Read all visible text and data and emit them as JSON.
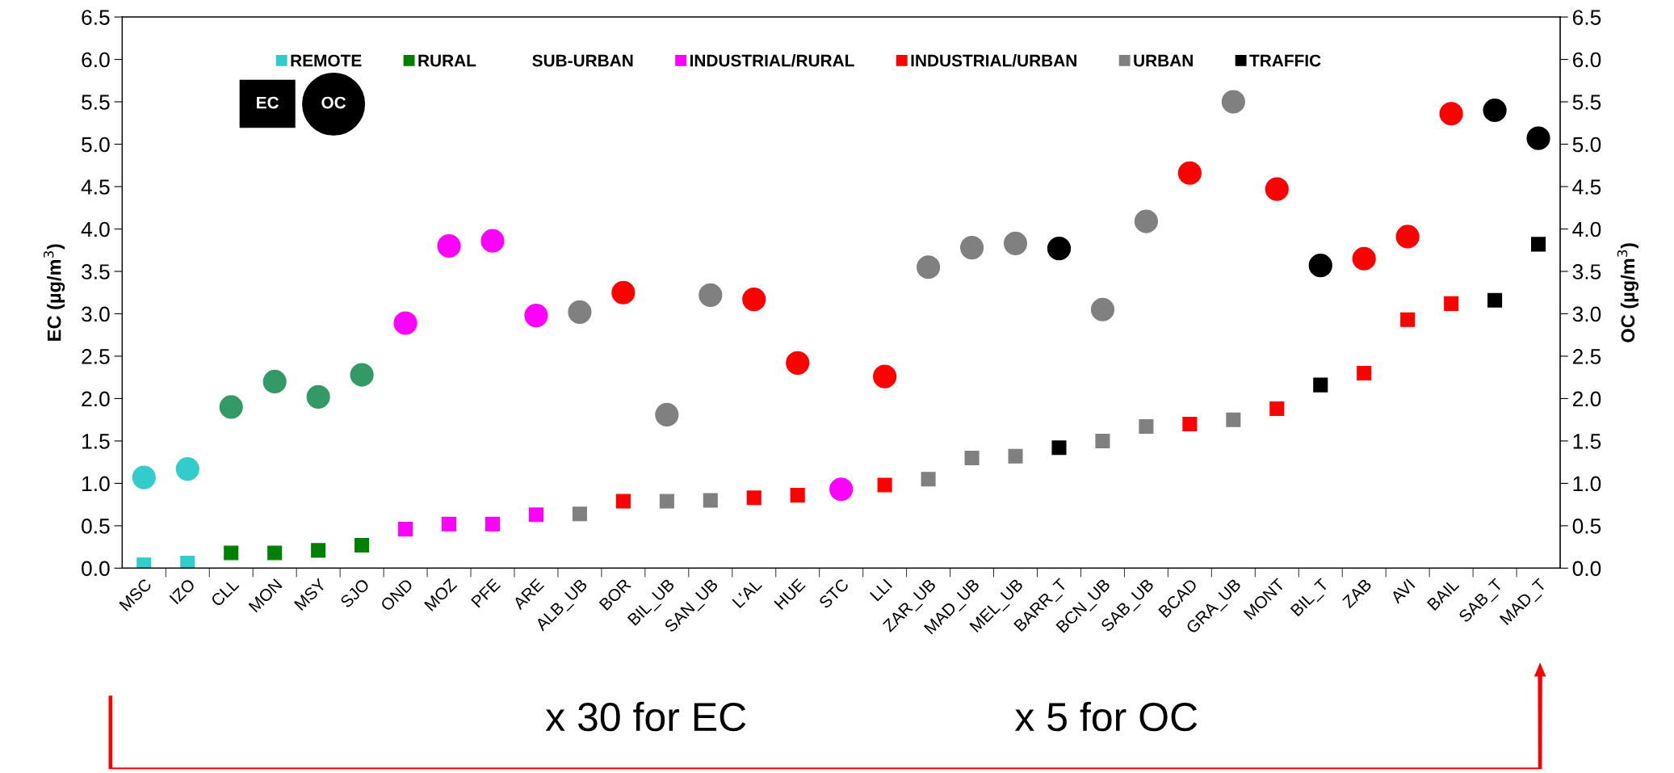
{
  "chart_data": {
    "type": "scatter",
    "categories": [
      "MSC",
      "IZO",
      "CLL",
      "MON",
      "MSY",
      "SJO",
      "OND",
      "MOZ",
      "PFE",
      "ARE",
      "ALB_UB",
      "BOR",
      "BIL_UB",
      "SAN_UB",
      "L'AL",
      "HUE",
      "STC",
      "LLI",
      "ZAR_UB",
      "MAD_UB",
      "MEL_UB",
      "BARR_T",
      "BCN_UB",
      "SAB_UB",
      "BCAD",
      "GRA_UB",
      "MONT",
      "BIL_T",
      "ZAB",
      "AVI",
      "BAIL",
      "SAB_T",
      "MAD_T"
    ],
    "ylabel": "EC (µg/m$^{3}$)",
    "y2label": "OC (µg/m$^{3}$)",
    "ylim": [
      0,
      6.5
    ],
    "y2lim": [
      0,
      6.5
    ],
    "yticks": [
      {
        "value": 0,
        "label": "0.0"
      },
      {
        "value": 0.5,
        "label": "0.5"
      },
      {
        "value": 1,
        "label": "1.0"
      },
      {
        "value": 1.5,
        "label": "1.5"
      },
      {
        "value": 2,
        "label": "2.0"
      },
      {
        "value": 2.5,
        "label": "2.5"
      },
      {
        "value": 3,
        "label": "3.0"
      },
      {
        "value": 3.5,
        "label": "3.5"
      },
      {
        "value": 4,
        "label": "4.0"
      },
      {
        "value": 4.5,
        "label": "4.5"
      },
      {
        "value": 5,
        "label": "5.0"
      },
      {
        "value": 5.5,
        "label": "5.5"
      },
      {
        "value": 6,
        "label": "6.0"
      },
      {
        "value": 6.5,
        "label": "6.5"
      }
    ],
    "y2ticks": [
      {
        "value": 0,
        "label": "0.0"
      },
      {
        "value": 0.5,
        "label": "0.5"
      },
      {
        "value": 1,
        "label": "1.0"
      },
      {
        "value": 1.5,
        "label": "1.5"
      },
      {
        "value": 2,
        "label": "2.0"
      },
      {
        "value": 2.5,
        "label": "2.5"
      },
      {
        "value": 3,
        "label": "3.0"
      },
      {
        "value": 3.5,
        "label": "3.5"
      },
      {
        "value": 4,
        "label": "4.0"
      },
      {
        "value": 4.5,
        "label": "4.5"
      },
      {
        "value": 5,
        "label": "5.0"
      },
      {
        "value": 5.5,
        "label": "5.5"
      },
      {
        "value": 6,
        "label": "6.0"
      },
      {
        "value": 6.5,
        "label": "6.5"
      }
    ],
    "grid": false,
    "legend": "top",
    "annotations": [
      "EC",
      "OC",
      "x 30 for EC",
      "x 5 for OC"
    ],
    "series": [
      {
        "name": "REMOTE",
        "color": "#33cccc",
        "marker": "square",
        "values": [
          0.04,
          0.06,
          null,
          null,
          null,
          null,
          null,
          null,
          null,
          null,
          null,
          null,
          null,
          null,
          null,
          null,
          null,
          null,
          null,
          null,
          null,
          null,
          null,
          null,
          null,
          null,
          null,
          null,
          null,
          null,
          null,
          null,
          null
        ]
      },
      {
        "name": "RURAL",
        "color": "#008000",
        "marker": "square",
        "values": [
          null,
          null,
          0.18,
          0.18,
          0.21,
          0.27,
          null,
          null,
          null,
          null,
          null,
          null,
          null,
          null,
          null,
          null,
          null,
          null,
          null,
          null,
          null,
          null,
          null,
          null,
          null,
          null,
          null,
          null,
          null,
          null,
          null,
          null,
          null
        ]
      },
      {
        "name": "SUB-URBAN",
        "color": null,
        "marker": "none",
        "values": [
          null,
          null,
          null,
          null,
          null,
          null,
          null,
          null,
          null,
          null,
          null,
          null,
          null,
          null,
          null,
          null,
          null,
          null,
          null,
          null,
          null,
          null,
          null,
          null,
          null,
          null,
          null,
          null,
          null,
          null,
          null,
          null,
          null
        ]
      },
      {
        "name": "INDUSTRIAL/RURAL",
        "color": "#ff00ff",
        "marker": "square",
        "values": [
          null,
          null,
          null,
          null,
          null,
          null,
          0.46,
          0.52,
          0.52,
          0.63,
          null,
          null,
          null,
          null,
          null,
          null,
          null,
          null,
          null,
          null,
          null,
          null,
          null,
          null,
          null,
          null,
          null,
          null,
          null,
          null,
          null,
          null,
          null
        ]
      },
      {
        "name": "INDUSTRIAL/URBAN",
        "color": "#ff0000",
        "marker": "square",
        "values": [
          null,
          null,
          null,
          null,
          null,
          null,
          null,
          null,
          null,
          null,
          null,
          0.79,
          null,
          null,
          0.83,
          0.86,
          null,
          0.98,
          null,
          null,
          null,
          null,
          null,
          null,
          1.7,
          null,
          1.88,
          null,
          2.3,
          2.93,
          3.12,
          null,
          null
        ]
      },
      {
        "name": "URBAN",
        "color": "#808080",
        "marker": "square",
        "values": [
          null,
          null,
          null,
          null,
          null,
          null,
          null,
          null,
          null,
          null,
          0.64,
          null,
          0.79,
          0.8,
          null,
          null,
          null,
          null,
          1.05,
          1.3,
          1.32,
          null,
          1.5,
          1.67,
          null,
          1.75,
          null,
          null,
          null,
          null,
          null,
          null,
          null
        ]
      },
      {
        "name": "TRAFFIC",
        "color": "#000000",
        "marker": "square",
        "values": [
          null,
          null,
          null,
          null,
          null,
          null,
          null,
          null,
          null,
          null,
          null,
          null,
          null,
          null,
          null,
          null,
          null,
          null,
          null,
          null,
          null,
          1.42,
          null,
          null,
          null,
          null,
          null,
          2.16,
          null,
          null,
          null,
          3.16,
          3.82
        ]
      },
      {
        "color": "#33cccc",
        "marker": "circle",
        "values": [
          1.07,
          1.17,
          null,
          null,
          null,
          null,
          null,
          null,
          null,
          null,
          null,
          null,
          null,
          null,
          null,
          null,
          null,
          null,
          null,
          null,
          null,
          null,
          null,
          null,
          null,
          null,
          null,
          null,
          null,
          null,
          null,
          null,
          null
        ]
      },
      {
        "color": "#339966",
        "marker": "circle",
        "values": [
          null,
          null,
          1.9,
          2.2,
          2.02,
          2.28,
          null,
          null,
          null,
          null,
          null,
          null,
          null,
          null,
          null,
          null,
          null,
          null,
          null,
          null,
          null,
          null,
          null,
          null,
          null,
          null,
          null,
          null,
          null,
          null,
          null,
          null,
          null
        ]
      },
      {
        "color": "#ff00ff",
        "marker": "circle",
        "values": [
          null,
          null,
          null,
          null,
          null,
          null,
          2.89,
          3.8,
          3.86,
          2.98,
          null,
          null,
          null,
          null,
          null,
          null,
          0.93,
          null,
          null,
          null,
          null,
          null,
          null,
          null,
          null,
          null,
          null,
          null,
          null,
          null,
          null,
          null,
          null
        ]
      },
      {
        "color": "#ff0000",
        "marker": "circle",
        "values": [
          null,
          null,
          null,
          null,
          null,
          null,
          null,
          null,
          null,
          null,
          null,
          3.25,
          null,
          null,
          3.17,
          2.42,
          null,
          2.26,
          null,
          null,
          null,
          null,
          null,
          null,
          4.66,
          null,
          4.47,
          null,
          3.65,
          3.91,
          5.36,
          null,
          null
        ]
      },
      {
        "color": "#808080",
        "marker": "circle",
        "values": [
          null,
          null,
          null,
          null,
          null,
          null,
          null,
          null,
          null,
          null,
          3.02,
          null,
          1.81,
          3.22,
          null,
          null,
          null,
          null,
          3.55,
          3.78,
          3.83,
          null,
          3.05,
          4.09,
          null,
          5.5,
          null,
          null,
          null,
          null,
          null,
          null,
          null
        ]
      },
      {
        "color": "#000000",
        "marker": "circle",
        "values": [
          null,
          null,
          null,
          null,
          null,
          null,
          null,
          null,
          null,
          null,
          null,
          null,
          null,
          null,
          null,
          null,
          null,
          null,
          null,
          null,
          null,
          3.77,
          null,
          null,
          null,
          null,
          null,
          3.57,
          null,
          null,
          null,
          5.4,
          5.07
        ]
      }
    ]
  }
}
